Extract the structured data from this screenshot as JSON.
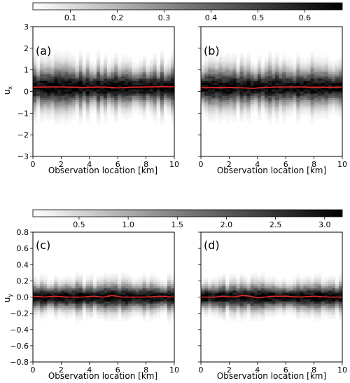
{
  "chart_data": [
    {
      "type": "heatmap",
      "panel": "(a)",
      "xlabel": "Observation location [km]",
      "ylabel": "u_x",
      "xlim": [
        0,
        10
      ],
      "ylim": [
        -3,
        3
      ],
      "x_ticks": [
        "0",
        "2",
        "4",
        "6",
        "8",
        "10"
      ],
      "y_ticks": [
        "−3",
        "−2",
        "−1",
        "0",
        "1",
        "2",
        "3"
      ],
      "density_center": 0.2,
      "density_spread": 0.5,
      "line_color": "#e8282a",
      "mean_line": {
        "x": [
          0,
          1,
          2,
          3,
          3.5,
          4,
          5,
          6,
          7,
          8,
          9,
          10
        ],
        "y": [
          0.2,
          0.21,
          0.21,
          0.2,
          0.18,
          0.2,
          0.21,
          0.17,
          0.2,
          0.21,
          0.22,
          0.22
        ]
      }
    },
    {
      "type": "heatmap",
      "panel": "(b)",
      "xlabel": "Observation location [km]",
      "xlim": [
        0,
        10
      ],
      "ylim": [
        -3,
        3
      ],
      "x_ticks": [
        "0",
        "2",
        "4",
        "6",
        "8",
        "10"
      ],
      "density_center": 0.2,
      "density_spread": 0.5,
      "line_color": "#e8282a",
      "mean_line": {
        "x": [
          0,
          1,
          2,
          3,
          3.7,
          4.5,
          5.5,
          6,
          7,
          8,
          9,
          10
        ],
        "y": [
          0.18,
          0.18,
          0.19,
          0.17,
          0.15,
          0.19,
          0.21,
          0.21,
          0.21,
          0.2,
          0.2,
          0.2
        ]
      }
    },
    {
      "type": "heatmap",
      "panel": "(c)",
      "xlabel": "Observation location [km]",
      "ylabel": "u_y",
      "xlim": [
        0,
        10
      ],
      "ylim": [
        -0.8,
        0.8
      ],
      "x_ticks": [
        "0",
        "2",
        "4",
        "6",
        "8",
        "10"
      ],
      "y_ticks": [
        "−0.8",
        "−0.6",
        "−0.4",
        "−0.2",
        "0.0",
        "0.2",
        "0.4",
        "0.6",
        "0.8"
      ],
      "density_center": 0.0,
      "density_spread": 0.09,
      "line_color": "#e8282a",
      "mean_line": {
        "x": [
          0,
          0.8,
          1.5,
          2.5,
          3.5,
          4.2,
          5,
          5.6,
          6.3,
          7,
          8,
          9,
          10
        ],
        "y": [
          0.01,
          0.0,
          0.01,
          0.0,
          0.0,
          0.01,
          0.0,
          0.02,
          0.0,
          0.0,
          0.0,
          0.01,
          0.0
        ]
      }
    },
    {
      "type": "heatmap",
      "panel": "(d)",
      "xlabel": "Observation location [km]",
      "xlim": [
        0,
        10
      ],
      "ylim": [
        -0.8,
        0.8
      ],
      "x_ticks": [
        "0",
        "2",
        "4",
        "6",
        "8",
        "10"
      ],
      "density_center": 0.0,
      "density_spread": 0.09,
      "line_color": "#e8282a",
      "mean_line": {
        "x": [
          0,
          1,
          1.5,
          2.2,
          3,
          3.5,
          4,
          4.5,
          5.2,
          6,
          7,
          8,
          9,
          10
        ],
        "y": [
          0.0,
          0.0,
          0.01,
          0.0,
          0.02,
          0.01,
          -0.01,
          0.0,
          0.01,
          0.01,
          0.0,
          0.01,
          0.0,
          0.0
        ]
      }
    }
  ],
  "colorbars": [
    {
      "ticks": [
        "0.1",
        "0.2",
        "0.3",
        "0.4",
        "0.5",
        "0.6"
      ],
      "tick_values": [
        0.1,
        0.2,
        0.3,
        0.4,
        0.5,
        0.6
      ],
      "range": [
        0.02,
        0.68
      ]
    },
    {
      "ticks": [
        "0.5",
        "1.0",
        "1.5",
        "2.0",
        "2.5",
        "3.0"
      ],
      "tick_values": [
        0.5,
        1.0,
        1.5,
        2.0,
        2.5,
        3.0
      ],
      "range": [
        0.03,
        3.18
      ]
    }
  ]
}
